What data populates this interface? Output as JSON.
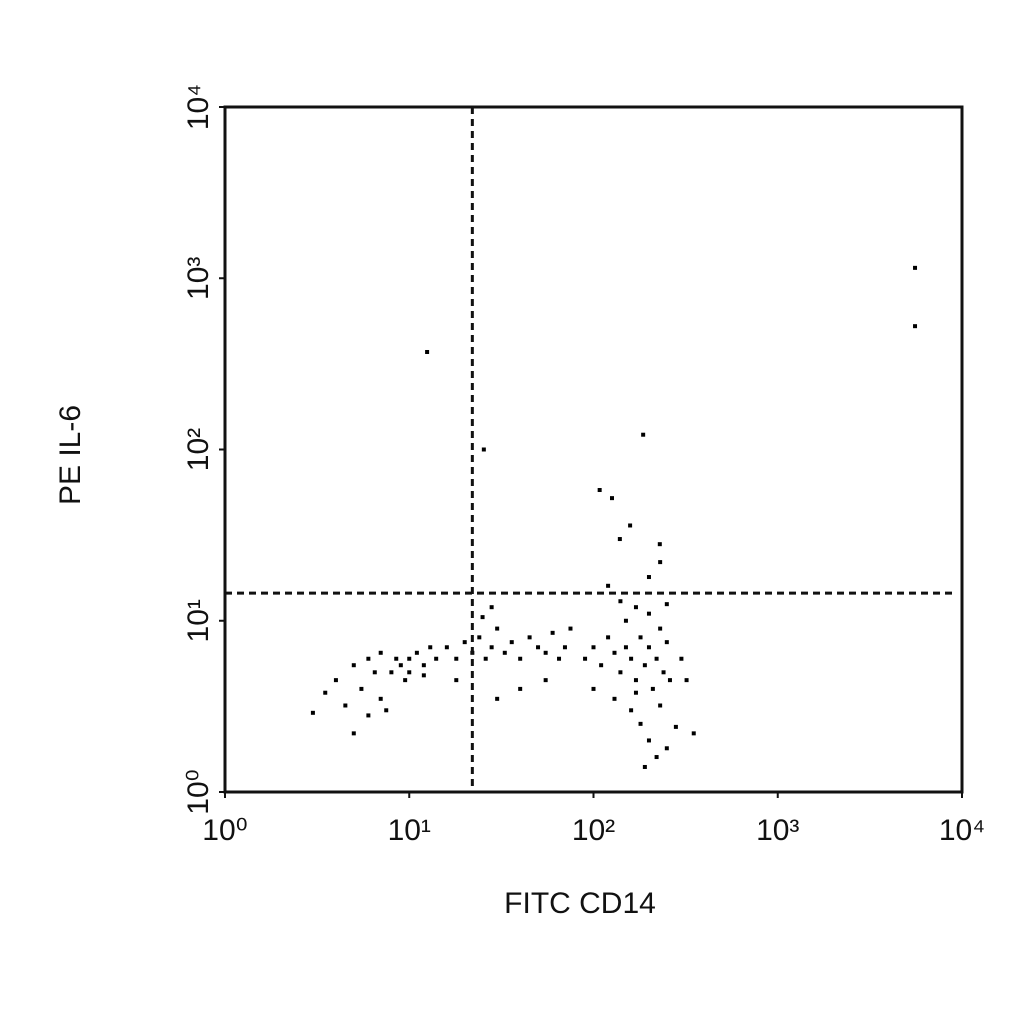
{
  "chart_data": {
    "type": "scatter",
    "x_label": "FITC CD14",
    "y_label": "PE IL-6",
    "xscale": "log",
    "yscale": "log",
    "xlim": [
      1,
      10000
    ],
    "ylim": [
      1,
      10000
    ],
    "xticks": [
      {
        "value": 1,
        "label": "10⁰"
      },
      {
        "value": 10,
        "label": "10¹"
      },
      {
        "value": 100,
        "label": "10²"
      },
      {
        "value": 1000,
        "label": "10³"
      },
      {
        "value": 10000,
        "label": "10⁴"
      }
    ],
    "yticks": [
      {
        "value": 1,
        "label": "10⁰"
      },
      {
        "value": 10,
        "label": "10¹"
      },
      {
        "value": 100,
        "label": "10²"
      },
      {
        "value": 1000,
        "label": "10³"
      },
      {
        "value": 10000,
        "label": "10⁴"
      }
    ],
    "quadrant_lines": {
      "x": 22,
      "y": 14.5
    },
    "color": "#000000",
    "x": [
      4,
      5,
      5.5,
      6,
      6.5,
      7,
      7,
      8,
      8.5,
      9,
      9.5,
      10,
      10,
      11,
      12,
      13,
      6,
      7.5,
      5,
      4.5,
      3.5,
      3,
      12,
      14,
      16,
      18,
      20,
      22,
      24,
      26,
      28,
      30,
      33,
      36,
      40,
      45,
      50,
      55,
      60,
      65,
      70,
      75,
      25,
      28,
      18,
      40,
      55,
      30,
      90,
      100,
      110,
      120,
      130,
      140,
      150,
      160,
      170,
      180,
      190,
      200,
      210,
      220,
      230,
      240,
      250,
      260,
      150,
      170,
      140,
      200,
      250,
      300,
      320,
      100,
      130,
      160,
      180,
      200,
      220,
      190,
      250,
      280,
      170,
      230,
      350,
      120,
      200,
      230,
      12.5,
      5560,
      5560,
      186,
      25.4,
      108,
      126,
      158,
      139,
      229
    ],
    "values": [
      4.5,
      5.5,
      4,
      6,
      5,
      3.5,
      6.5,
      5,
      6,
      5.5,
      4.5,
      6,
      5,
      6.5,
      5.5,
      7,
      2.8,
      3,
      2.2,
      3.2,
      3.8,
      2.9,
      4.8,
      6,
      7,
      6,
      7.5,
      6.5,
      8,
      6,
      7,
      9,
      6.5,
      7.5,
      6,
      8,
      7,
      6.5,
      8.5,
      6,
      7,
      9,
      10.5,
      12,
      4.5,
      4,
      4.5,
      3.5,
      6,
      7,
      5.5,
      8,
      6.5,
      5,
      7,
      6,
      4.5,
      8,
      5.5,
      7,
      4,
      6,
      9,
      5,
      7.5,
      4.5,
      10,
      12,
      13,
      11,
      12.5,
      6,
      4.5,
      4,
      3.5,
      3,
      2.5,
      2,
      1.6,
      1.4,
      1.8,
      2.4,
      3.8,
      3.2,
      2.2,
      16,
      18,
      22,
      371,
      1150,
      525,
      122,
      100,
      58,
      52,
      36,
      30,
      28
    ]
  }
}
